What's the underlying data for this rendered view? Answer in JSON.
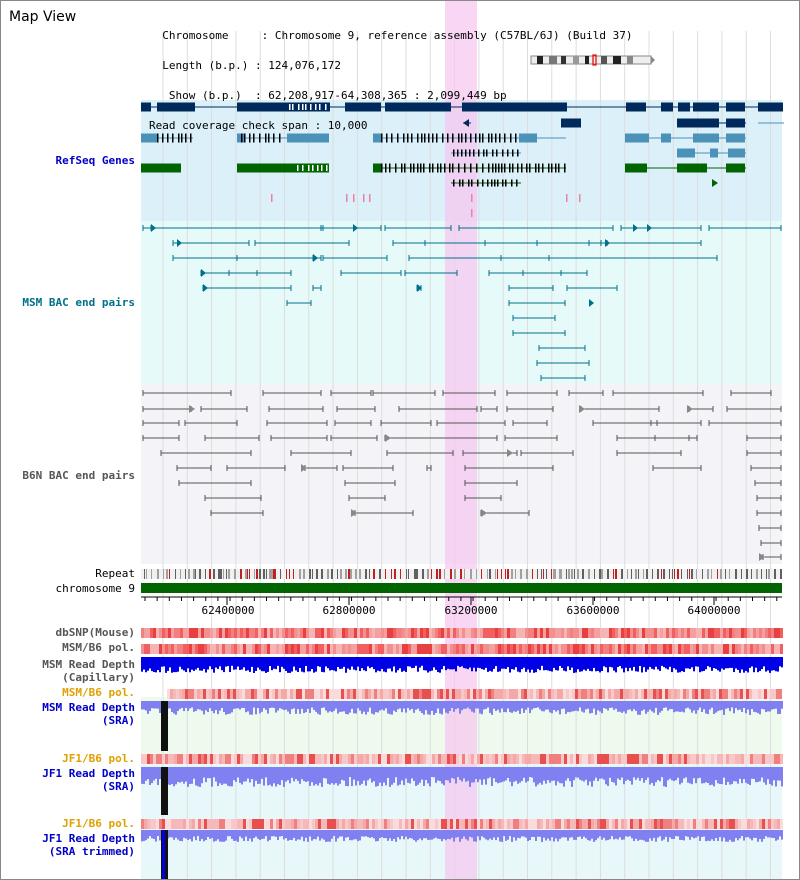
{
  "header": {
    "title": "Map View",
    "info_lines": [
      "  Chromosome     : Chromosome 9, reference assembly (C57BL/6J) (Build 37)",
      "  Length (b.p.) : 124,076,172",
      "   Show (b.p.)  : 62,208,917-64,308,365 : 2,099,449 bp",
      "Read coverage check span : 10,000"
    ]
  },
  "tracks": {
    "refseq": "RefSeq Genes",
    "msm_bac": "MSM BAC end pairs",
    "b6n_bac": "B6N BAC end pairs",
    "repeat": "Repeat",
    "chromosome": "chromosome 9",
    "dbsnp": "dbSNP(Mouse)",
    "msm_b6_pol_1": "MSM/B6 pol.",
    "msm_read_depth_cap": "MSM Read Depth\n(Capillary)",
    "msm_b6_pol_2": "MSM/B6 pol.",
    "msm_read_depth_sra": "MSM Read Depth\n(SRA)",
    "jf1_b6_pol_1": "JF1/B6 pol.",
    "jf1_read_depth_sra": "JF1 Read Depth\n(SRA)",
    "jf1_b6_pol_2": "JF1/B6 pol.",
    "jf1_read_depth_trim": "JF1 Read Depth\n(SRA trimmed)"
  },
  "axis": {
    "ticks": [
      "62400000",
      "62800000",
      "63200000",
      "63600000",
      "64000000"
    ]
  },
  "colors": {
    "refseq_bg": "#dcf0fa",
    "msm_bg": "#e6fafa",
    "b6n_bg": "#f4f4f8",
    "highlight": "#f5c8f0",
    "dark_navy": "#002a5c",
    "light_blue": "#4b92b8",
    "green": "#006400",
    "teal": "#00708a",
    "grey_line": "#555555",
    "blue_depth": "#0000e6",
    "light_depth": "#8080f0",
    "chrom_green": "#006400"
  }
}
